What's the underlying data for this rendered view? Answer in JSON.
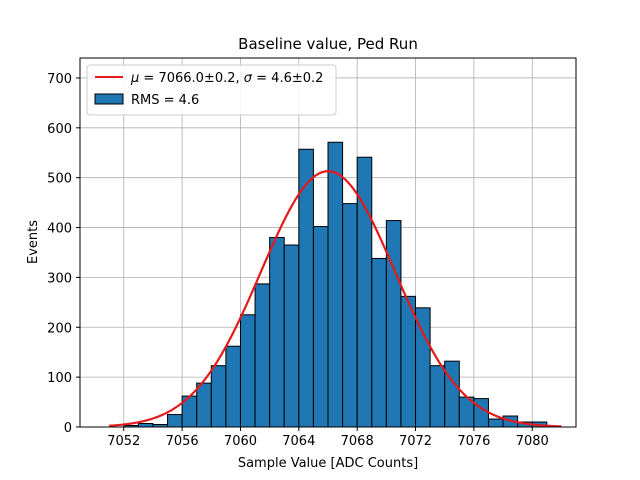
{
  "chart_data": {
    "type": "bar",
    "title": "Baseline value, Ped Run",
    "xlabel": "Sample Value [ADC Counts]",
    "ylabel": "Events",
    "xlim": [
      7049,
      7083
    ],
    "ylim": [
      0,
      740
    ],
    "xticks": [
      7052,
      7056,
      7060,
      7064,
      7068,
      7072,
      7076,
      7080
    ],
    "yticks": [
      0,
      100,
      200,
      300,
      400,
      500,
      600,
      700
    ],
    "grid": true,
    "legend_position": "top-left",
    "histogram": {
      "name": "RMS = 4.6",
      "color": "#1f77b4",
      "edge_color": "#000000",
      "bin_width": 1,
      "bin_starts": [
        7052,
        7053,
        7054,
        7055,
        7056,
        7057,
        7058,
        7059,
        7060,
        7061,
        7062,
        7063,
        7064,
        7065,
        7066,
        7067,
        7068,
        7069,
        7070,
        7071,
        7072,
        7073,
        7074,
        7075,
        7076,
        7077,
        7078,
        7079,
        7080
      ],
      "values": [
        3,
        7,
        5,
        25,
        62,
        88,
        123,
        162,
        225,
        287,
        380,
        365,
        557,
        402,
        571,
        448,
        541,
        338,
        414,
        262,
        239,
        123,
        132,
        60,
        57,
        16,
        22,
        10,
        10
      ]
    },
    "fit": {
      "name": "μ = 7066.0±0.2, σ = 4.6±0.2",
      "mu_label": "μ",
      "sigma_label": "σ",
      "mu_text": " = 7066.0±0.2, ",
      "sigma_text": " = 4.6±0.2",
      "color": "#e41a1c",
      "mu": 7066.0,
      "sigma": 4.6,
      "amplitude": 513,
      "x_range": [
        7051,
        7082
      ]
    }
  }
}
